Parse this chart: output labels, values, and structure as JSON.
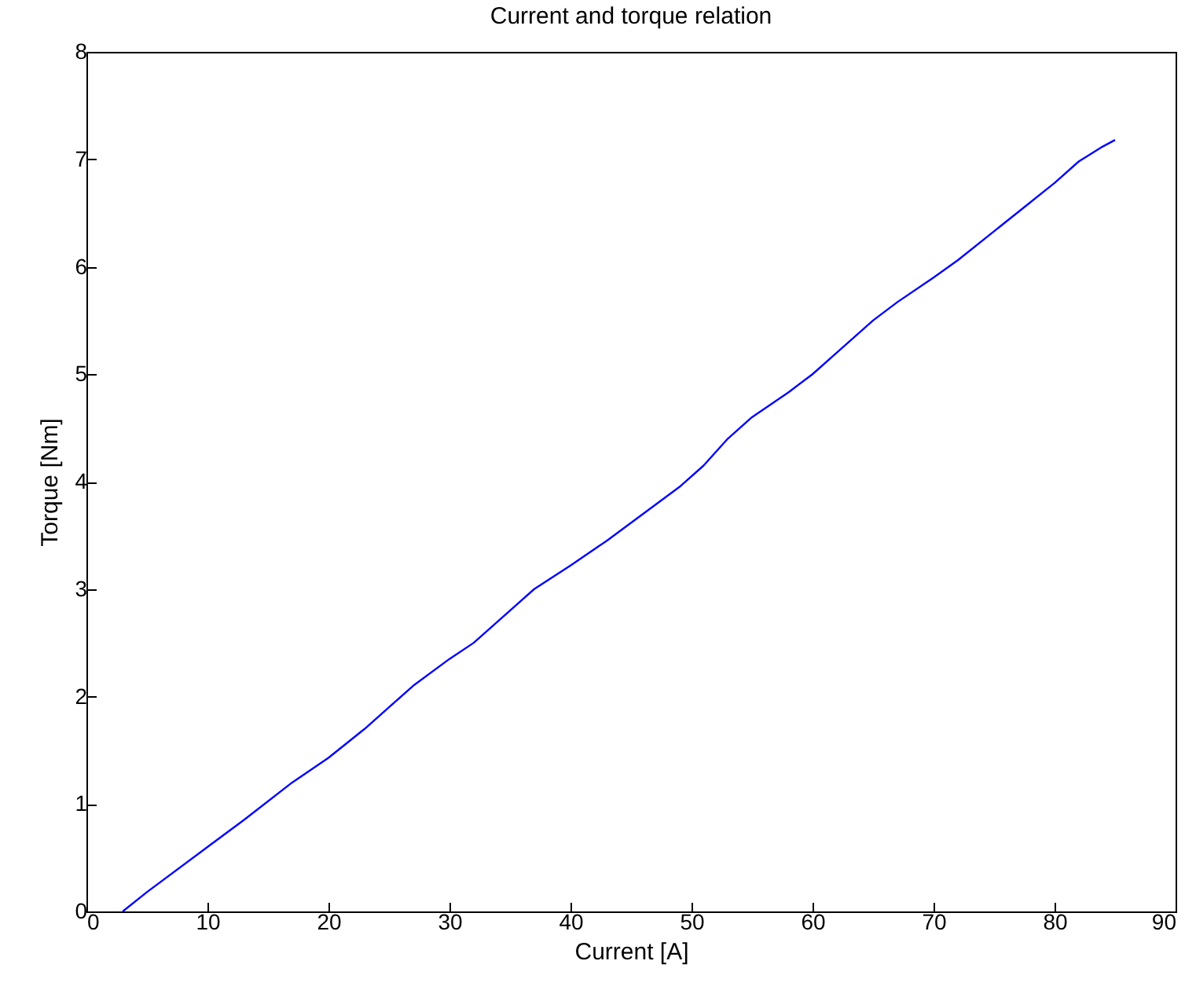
{
  "chart_data": {
    "type": "line",
    "title": "Current and torque relation",
    "xlabel": "Current [A]",
    "ylabel": "Torque [Nm]",
    "xlim": [
      0,
      90
    ],
    "xticks": [
      0,
      10,
      20,
      30,
      40,
      50,
      60,
      70,
      80,
      90
    ],
    "ylim": [
      0,
      8
    ],
    "yticks": [
      0,
      1,
      2,
      3,
      4,
      5,
      6,
      7,
      8
    ],
    "series": [
      {
        "color": "#0000ff",
        "x": [
          3,
          5,
          10,
          13,
          17,
          20,
          23,
          25,
          27,
          30,
          32,
          35,
          37,
          40,
          43,
          46,
          49,
          51,
          53,
          55,
          58,
          60,
          62,
          65,
          67,
          70,
          72,
          75,
          78,
          80,
          82,
          84,
          85
        ],
        "values": [
          0,
          0.18,
          0.6,
          0.85,
          1.2,
          1.43,
          1.7,
          1.9,
          2.1,
          2.35,
          2.5,
          2.8,
          3.0,
          3.22,
          3.45,
          3.7,
          3.95,
          4.15,
          4.4,
          4.6,
          4.83,
          5.0,
          5.2,
          5.5,
          5.67,
          5.9,
          6.06,
          6.33,
          6.6,
          6.78,
          6.98,
          7.12,
          7.18
        ]
      }
    ]
  }
}
